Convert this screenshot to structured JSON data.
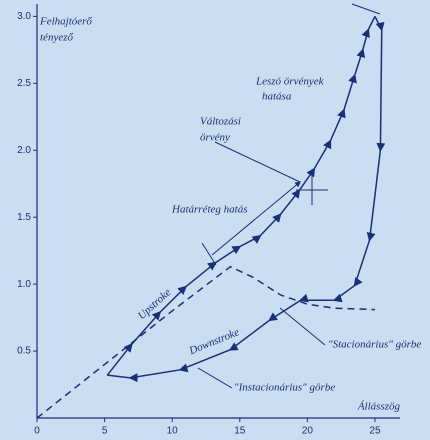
{
  "chart_data": {
    "type": "line",
    "ylabel": [
      "Felhajtóerő",
      "tényező"
    ],
    "xlabel": "Állásszög",
    "xlim": [
      0,
      26
    ],
    "xticks": [
      0,
      5,
      10,
      15,
      20,
      25
    ],
    "ylim": [
      0,
      3.1
    ],
    "yticks": [
      0.5,
      {
        "value": 1,
        "label": "1.0"
      },
      1.5,
      {
        "value": 2,
        "label": "2.0"
      },
      2.5,
      {
        "value": 3,
        "label": "3.0"
      }
    ],
    "series": [
      {
        "name": "Upstroke",
        "color": "#1a2f7a",
        "style": "solid",
        "x": [
          5.2,
          7,
          9.1,
          11,
          13.2,
          15,
          16.5,
          18,
          19.4,
          20.5,
          21.7,
          22.7,
          23.5,
          24.1,
          24.5,
          25
        ],
        "values": [
          0.32,
          0.55,
          0.79,
          0.98,
          1.16,
          1.28,
          1.36,
          1.52,
          1.7,
          1.86,
          2.07,
          2.3,
          2.56,
          2.75,
          2.9,
          3.0
        ]
      },
      {
        "name": "Downstroke",
        "color": "#1a2f7a",
        "style": "solid",
        "x": [
          25,
          25.5,
          25.4,
          24.6,
          23.5,
          22,
          19.5,
          17.2,
          14.3,
          10.6,
          6.9,
          5.2
        ],
        "values": [
          3.0,
          2.9,
          2.0,
          1.33,
          0.99,
          0.88,
          0.88,
          0.73,
          0.51,
          0.36,
          0.3,
          0.32
        ]
      },
      {
        "name": "\"Stacionárius\" görbe",
        "color": "#1a2f7a",
        "style": "dashed",
        "x": [
          0,
          5,
          10,
          14.3,
          16,
          18,
          20,
          22,
          25
        ],
        "values": [
          0,
          0.4,
          0.8,
          1.13,
          1.05,
          0.92,
          0.85,
          0.82,
          0.81
        ]
      }
    ],
    "annotations": [
      "Leszó örvények",
      "hatása",
      "Változási",
      "örvény",
      "Határréteg hatás",
      "\"Instacionárius\" görbe"
    ]
  }
}
